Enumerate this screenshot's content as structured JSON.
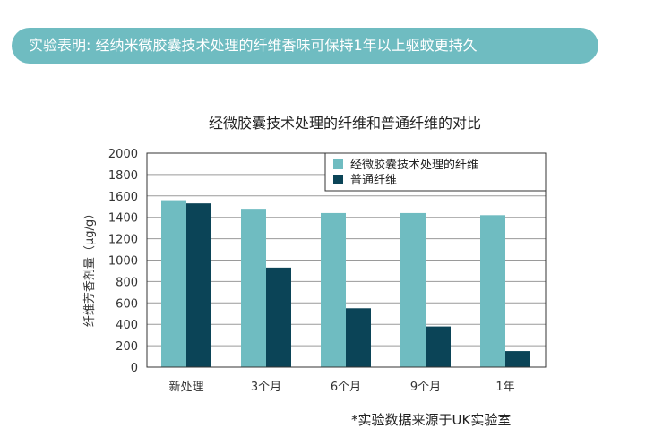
{
  "banner": {
    "text": "实验表明: 经纳米微胶囊技术处理的纤维香味可保持1年以上驱蚊更持久",
    "color": "#6fbcc1"
  },
  "footnote": "*实验数据来源于UK实验室",
  "chart_data": {
    "type": "bar",
    "title": "经微胶囊技术处理的纤维和普通纤维的对比",
    "xlabel": "",
    "ylabel": "纤维芳香剂量（μg/g）",
    "categories": [
      "新处理",
      "3个月",
      "6个月",
      "9个月",
      "1年"
    ],
    "series": [
      {
        "name": "经微胶囊技术处理的纤维",
        "color": "#6fbcc1",
        "values": [
          1560,
          1480,
          1440,
          1440,
          1420
        ]
      },
      {
        "name": "普通纤维",
        "color": "#0b4457",
        "values": [
          1530,
          930,
          550,
          380,
          150
        ]
      }
    ],
    "ylim": [
      0,
      2000
    ],
    "yticks": [
      0,
      200,
      400,
      600,
      800,
      1000,
      1200,
      1400,
      1600,
      1800,
      2000
    ],
    "grid": true,
    "legend_position": "top-right"
  }
}
